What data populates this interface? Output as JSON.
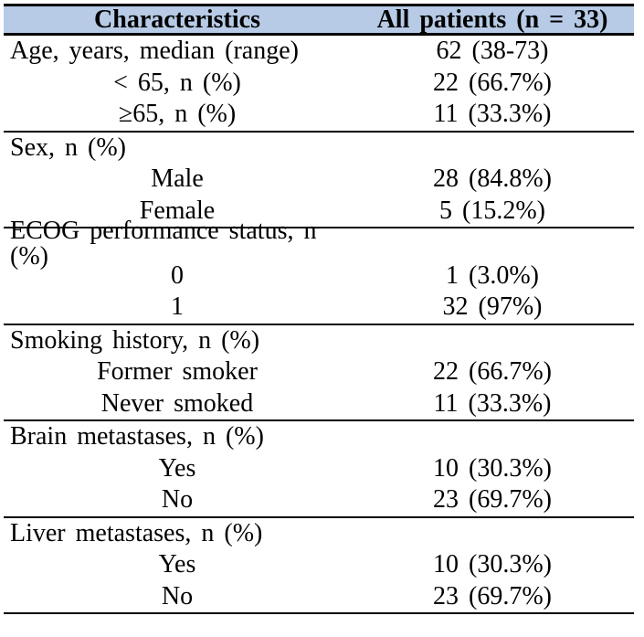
{
  "table": {
    "header": {
      "characteristics": "Characteristics",
      "all_patients": "All patients (n = 33)"
    },
    "sections": [
      {
        "name": "age",
        "rows": [
          {
            "label": "Age, years, median (range)",
            "value": "62 (38-73)",
            "indent": false
          },
          {
            "label": "< 65, n (%)",
            "value": "22 (66.7%)",
            "indent": true
          },
          {
            "label": "≥65, n (%)",
            "value": "11 (33.3%)",
            "indent": true
          }
        ]
      },
      {
        "name": "sex",
        "rows": [
          {
            "label": "Sex, n (%)",
            "value": "",
            "indent": false
          },
          {
            "label": "Male",
            "value": "28 (84.8%)",
            "indent": true
          },
          {
            "label": "Female",
            "value": "5 (15.2%)",
            "indent": true
          }
        ]
      },
      {
        "name": "ecog-performance-status",
        "rows": [
          {
            "label": "ECOG performance status, n (%)",
            "value": "",
            "indent": false
          },
          {
            "label": "0",
            "value": "1 (3.0%)",
            "indent": true
          },
          {
            "label": "1",
            "value": "32 (97%)",
            "indent": true
          }
        ]
      },
      {
        "name": "smoking-history",
        "rows": [
          {
            "label": "Smoking history, n (%)",
            "value": "",
            "indent": false
          },
          {
            "label": "Former smoker",
            "value": "22 (66.7%)",
            "indent": true
          },
          {
            "label": "Never smoked",
            "value": "11 (33.3%)",
            "indent": true
          }
        ]
      },
      {
        "name": "brain-metastases",
        "rows": [
          {
            "label": "Brain metastases, n (%)",
            "value": "",
            "indent": false
          },
          {
            "label": "Yes",
            "value": "10 (30.3%)",
            "indent": true
          },
          {
            "label": "No",
            "value": "23 (69.7%)",
            "indent": true
          }
        ]
      },
      {
        "name": "liver-metastases",
        "rows": [
          {
            "label": "Liver metastases, n (%)",
            "value": "",
            "indent": false
          },
          {
            "label": "Yes",
            "value": "10 (30.3%)",
            "indent": true
          },
          {
            "label": "No",
            "value": "23 (69.7%)",
            "indent": true
          }
        ]
      }
    ]
  },
  "colors": {
    "header_bg": "#b7cbe6",
    "border": "#000000",
    "text": "#000000",
    "background": "#ffffff"
  }
}
